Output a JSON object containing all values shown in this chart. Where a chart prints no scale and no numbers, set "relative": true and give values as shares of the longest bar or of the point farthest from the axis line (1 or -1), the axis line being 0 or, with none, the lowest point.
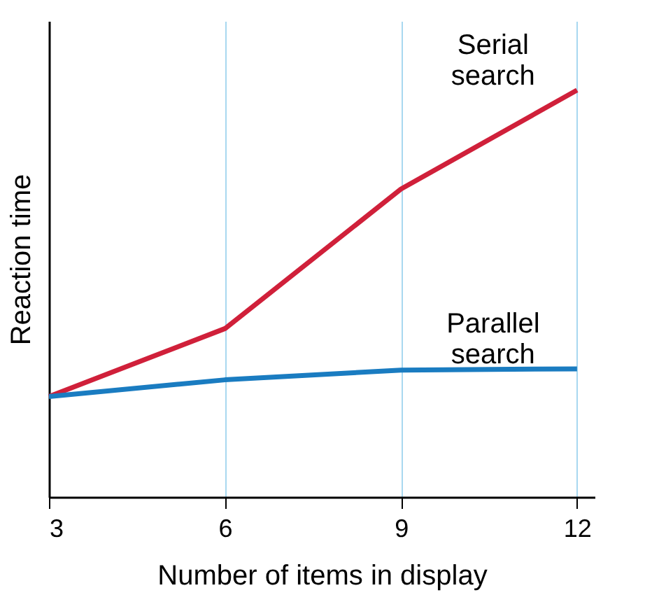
{
  "chart_data": {
    "type": "line",
    "xlabel": "Number of items in display",
    "ylabel": "Reaction time",
    "relative": true,
    "x": [
      3,
      6,
      9,
      12
    ],
    "xlim": [
      3,
      12.3
    ],
    "xticks": [
      3,
      6,
      9,
      12
    ],
    "grid": "x",
    "marker": "none",
    "line_style": "solid",
    "series": [
      {
        "name": "Serial search",
        "color": "#d0203a",
        "values": [
          0.247,
          0.414,
          0.757,
          1
        ]
      },
      {
        "name": "Parallel search",
        "color": "#1a7cc1",
        "values": [
          0.247,
          0.288,
          0.312,
          0.315
        ]
      }
    ]
  }
}
